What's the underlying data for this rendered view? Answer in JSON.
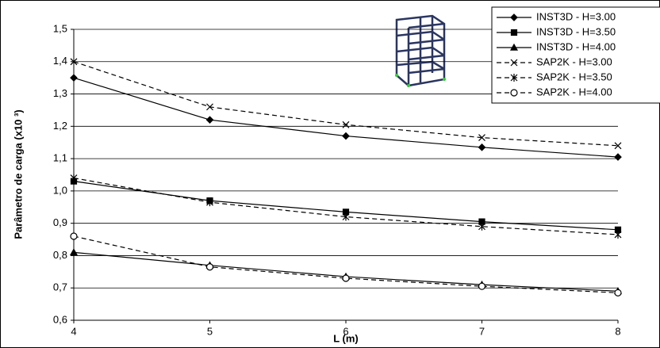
{
  "chart_data": {
    "type": "line",
    "ylabel": "Parâmetro de carga  (x10 ³)",
    "xlabel": "L (m)",
    "x": [
      4,
      5,
      6,
      7,
      8
    ],
    "xlim": [
      4,
      8
    ],
    "xticks": [
      4,
      5,
      6,
      7,
      8
    ],
    "ylim": [
      0.6,
      1.5
    ],
    "yticks": [
      {
        "value": 0.6,
        "label": "0,6"
      },
      {
        "value": 0.7,
        "label": "0,7"
      },
      {
        "value": 0.8,
        "label": "0,8"
      },
      {
        "value": 0.9,
        "label": "0,9"
      },
      {
        "value": 1.0,
        "label": "1,0"
      },
      {
        "value": 1.1,
        "label": "1,1"
      },
      {
        "value": 1.2,
        "label": "1,2"
      },
      {
        "value": 1.3,
        "label": "1,3"
      },
      {
        "value": 1.4,
        "label": "1,4"
      },
      {
        "value": 1.5,
        "label": "1,5"
      }
    ],
    "grid": true,
    "legend": "upper right",
    "series": [
      {
        "name": "INST3D - H=3.00",
        "color": "#000000",
        "marker": "diamond",
        "dashed": false,
        "values": [
          1.35,
          1.22,
          1.17,
          1.135,
          1.105
        ]
      },
      {
        "name": "INST3D - H=3.50",
        "color": "#000000",
        "marker": "square",
        "dashed": false,
        "values": [
          1.03,
          0.97,
          0.935,
          0.905,
          0.88
        ]
      },
      {
        "name": "INST3D - H=4.00",
        "color": "#000000",
        "marker": "triangle",
        "dashed": false,
        "values": [
          0.81,
          0.77,
          0.735,
          0.71,
          0.69
        ]
      },
      {
        "name": "SAP2K - H=3.00",
        "color": "#000000",
        "marker": "x",
        "dashed": true,
        "values": [
          1.4,
          1.26,
          1.205,
          1.165,
          1.14
        ]
      },
      {
        "name": "SAP2K - H=3.50",
        "color": "#000000",
        "marker": "star",
        "dashed": true,
        "values": [
          1.04,
          0.965,
          0.92,
          0.89,
          0.865
        ]
      },
      {
        "name": "SAP2K - H=4.00",
        "color": "#000000",
        "marker": "circle",
        "dashed": true,
        "values": [
          0.86,
          0.765,
          0.73,
          0.705,
          0.685
        ]
      }
    ]
  }
}
